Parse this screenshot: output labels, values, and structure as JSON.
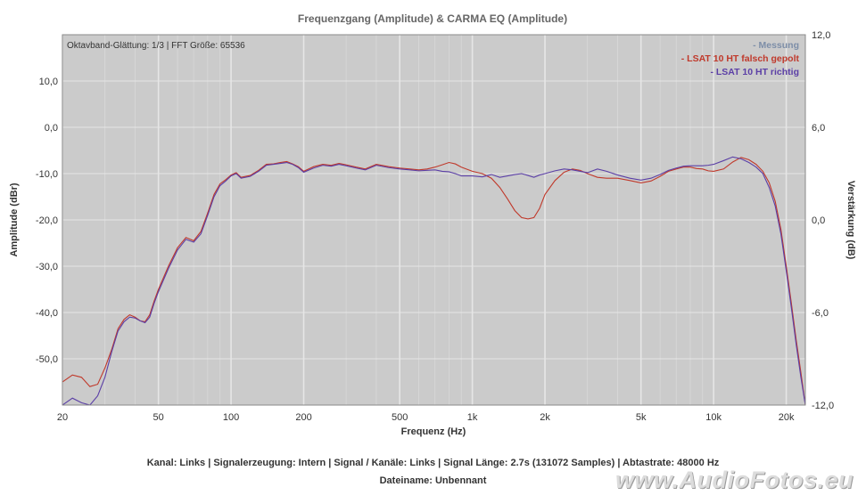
{
  "chart_data": {
    "type": "line",
    "title": "Frequenzgang (Amplitude) & CARMA EQ (Amplitude)",
    "info": "Oktavband-Glättung: 1/3 | FFT Größe: 65536",
    "xlabel": "Frequenz (Hz)",
    "ylabel": "Amplitude (dBr)",
    "y2label": "Verstärkung (dB)",
    "xscale": "log",
    "xlim": [
      20,
      24000
    ],
    "ylim": [
      -60,
      20
    ],
    "y2lim": [
      -12,
      12
    ],
    "xticks": [
      20,
      50,
      100,
      200,
      500,
      1000,
      2000,
      5000,
      10000,
      20000
    ],
    "xtick_labels": [
      "20",
      "50",
      "100",
      "200",
      "500",
      "1k",
      "2k",
      "5k",
      "10k",
      "20k"
    ],
    "yticks": [
      10,
      0,
      -10,
      -20,
      -30,
      -40,
      -50
    ],
    "ytick_labels": [
      "10,0",
      "0,0",
      "-10,0",
      "-20,0",
      "-30,0",
      "-40,0",
      "-50,0"
    ],
    "y2ticks": [
      12,
      6,
      0,
      -6,
      -12
    ],
    "y2tick_labels": [
      "12,0",
      "6,0",
      "0,0",
      "-6,0",
      "-12,0"
    ],
    "grid": true,
    "legend_position": "top-right",
    "legend": [
      "- Messung",
      "- LSAT 10 HT falsch gepolt",
      "- LSAT 10 HT richtig"
    ],
    "colors": {
      "Messung": "#7d8ea8",
      "LSAT 10 HT falsch gepolt": "#c0392b",
      "LSAT 10 HT richtig": "#5b3fa6",
      "plot_bg": "#cbcbcb",
      "grid": "#e6e6e6"
    },
    "series": [
      {
        "name": "LSAT 10 HT falsch gepolt",
        "x": [
          20,
          22,
          24,
          26,
          28,
          30,
          32,
          34,
          36,
          38,
          40,
          42,
          44,
          46,
          48,
          50,
          55,
          60,
          65,
          70,
          75,
          80,
          85,
          90,
          95,
          100,
          105,
          110,
          120,
          130,
          140,
          150,
          160,
          170,
          180,
          190,
          200,
          220,
          240,
          260,
          280,
          300,
          330,
          360,
          400,
          450,
          500,
          550,
          600,
          650,
          700,
          750,
          800,
          850,
          900,
          1000,
          1100,
          1200,
          1300,
          1400,
          1500,
          1600,
          1700,
          1800,
          1900,
          2000,
          2200,
          2400,
          2600,
          2800,
          3000,
          3300,
          3600,
          4000,
          4500,
          5000,
          5500,
          6000,
          6500,
          7000,
          7500,
          8000,
          8500,
          9000,
          9500,
          10000,
          11000,
          12000,
          13000,
          14000,
          15000,
          16000,
          17000,
          18000,
          19000,
          20000,
          21000,
          22000,
          23000,
          24000
        ],
        "values": [
          -55,
          -53.5,
          -54,
          -56,
          -55.5,
          -52,
          -48,
          -43.5,
          -41.5,
          -40.5,
          -41,
          -41.8,
          -42,
          -40.5,
          -37.5,
          -35,
          -30,
          -26,
          -23.8,
          -24.5,
          -22.5,
          -18.5,
          -14.5,
          -12.2,
          -11.3,
          -10.3,
          -9.8,
          -10.8,
          -10.4,
          -9.3,
          -8.0,
          -7.9,
          -7.6,
          -7.4,
          -7.9,
          -8.5,
          -9.5,
          -8.5,
          -8.0,
          -8.2,
          -7.8,
          -8.1,
          -8.6,
          -9.0,
          -8.0,
          -8.5,
          -8.8,
          -9.0,
          -9.2,
          -9.0,
          -8.6,
          -8.1,
          -7.6,
          -7.9,
          -8.6,
          -9.5,
          -10.0,
          -11.0,
          -13.0,
          -15.5,
          -18.0,
          -19.5,
          -19.8,
          -19.5,
          -17.5,
          -14.5,
          -11.5,
          -9.7,
          -9.0,
          -9.3,
          -10.0,
          -10.8,
          -11.0,
          -11.0,
          -11.5,
          -12.0,
          -11.6,
          -10.6,
          -9.5,
          -9.0,
          -8.6,
          -8.6,
          -8.9,
          -9.0,
          -9.4,
          -9.5,
          -9.0,
          -7.5,
          -6.5,
          -7.0,
          -8.0,
          -9.5,
          -12.0,
          -16.0,
          -22.0,
          -30.0,
          -38.0,
          -46.0,
          -53.0,
          -60.0
        ]
      },
      {
        "name": "LSAT 10 HT richtig",
        "x": [
          20,
          22,
          24,
          26,
          28,
          30,
          32,
          34,
          36,
          38,
          40,
          42,
          44,
          46,
          48,
          50,
          55,
          60,
          65,
          70,
          75,
          80,
          85,
          90,
          95,
          100,
          105,
          110,
          120,
          130,
          140,
          150,
          160,
          170,
          180,
          190,
          200,
          220,
          240,
          260,
          280,
          300,
          330,
          360,
          400,
          450,
          500,
          550,
          600,
          650,
          700,
          750,
          800,
          850,
          900,
          1000,
          1100,
          1200,
          1300,
          1400,
          1500,
          1600,
          1700,
          1800,
          1900,
          2000,
          2200,
          2400,
          2600,
          2800,
          3000,
          3300,
          3600,
          4000,
          4500,
          5000,
          5500,
          6000,
          6500,
          7000,
          7500,
          8000,
          8500,
          9000,
          9500,
          10000,
          11000,
          12000,
          13000,
          14000,
          15000,
          16000,
          17000,
          18000,
          19000,
          20000,
          21000,
          22000,
          23000,
          24000
        ],
        "values": [
          -60,
          -58.5,
          -59.5,
          -60,
          -58,
          -54,
          -48.5,
          -44,
          -42,
          -41,
          -41.2,
          -41.8,
          -42.2,
          -41,
          -38,
          -35.5,
          -30.5,
          -26.5,
          -24.2,
          -24.8,
          -23,
          -19,
          -15,
          -12.6,
          -11.6,
          -10.5,
          -10.0,
          -11.0,
          -10.6,
          -9.5,
          -8.2,
          -8.0,
          -7.8,
          -7.6,
          -8.0,
          -8.7,
          -9.7,
          -8.8,
          -8.2,
          -8.4,
          -8.0,
          -8.3,
          -8.8,
          -9.2,
          -8.2,
          -8.7,
          -9.0,
          -9.2,
          -9.4,
          -9.3,
          -9.2,
          -9.5,
          -9.6,
          -10.0,
          -10.5,
          -10.5,
          -10.7,
          -10.2,
          -10.8,
          -10.5,
          -10.2,
          -10.0,
          -10.4,
          -10.8,
          -10.3,
          -10.0,
          -9.4,
          -9.0,
          -9.2,
          -9.5,
          -9.8,
          -9.0,
          -9.5,
          -10.3,
          -11.0,
          -11.4,
          -11.0,
          -10.2,
          -9.3,
          -8.8,
          -8.4,
          -8.3,
          -8.3,
          -8.3,
          -8.2,
          -8.0,
          -7.2,
          -6.4,
          -6.8,
          -7.6,
          -8.6,
          -10.0,
          -13.0,
          -17.0,
          -23.0,
          -31.0,
          -39.0,
          -47.0,
          -54.0,
          -60.0
        ]
      }
    ]
  },
  "footer": {
    "info": "Kanal: Links  |  Signalerzeugung: Intern  |  Signal / Kanäle: Links  |  Signal Länge: 2.7s (131072 Samples)  |  Abtastrate: 48000 Hz",
    "filename": "Dateiname: Unbennant"
  },
  "watermark": "www.AudioFotos.eu"
}
